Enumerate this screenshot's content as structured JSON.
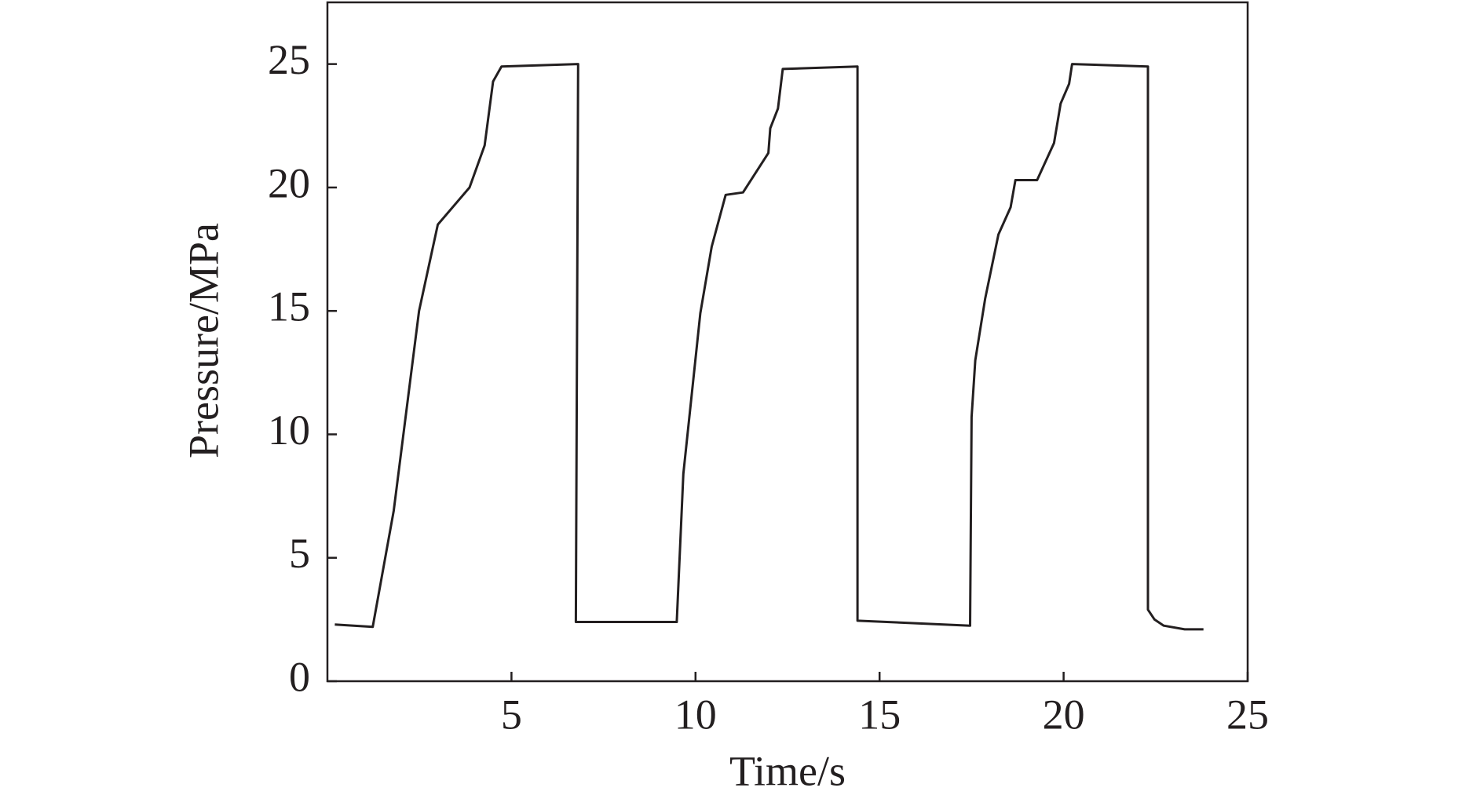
{
  "chart_data": {
    "type": "line",
    "x_label": "Time/s",
    "y_label": "Pressure/MPa",
    "x": [
      0.2,
      1.23,
      1.8,
      2.49,
      3.0,
      3.86,
      4.27,
      4.5,
      4.73,
      6.81,
      6.75,
      9.49,
      9.67,
      10.13,
      10.44,
      10.82,
      11.29,
      11.98,
      12.03,
      12.24,
      12.37,
      14.4,
      14.4,
      17.46,
      17.5,
      17.6,
      17.87,
      18.23,
      18.56,
      18.69,
      19.28,
      19.74,
      19.92,
      20.15,
      20.23,
      22.29,
      22.29,
      22.47,
      22.72,
      23.29,
      23.8
    ],
    "values": [
      2.3,
      2.2,
      6.9,
      15.0,
      18.5,
      20.0,
      21.7,
      24.3,
      24.9,
      25.0,
      2.4,
      2.4,
      8.4,
      14.9,
      17.6,
      19.7,
      19.8,
      21.4,
      22.4,
      23.2,
      24.8,
      24.9,
      2.45,
      2.25,
      10.7,
      13.0,
      15.5,
      18.1,
      19.2,
      20.3,
      20.3,
      21.8,
      23.4,
      24.2,
      25.0,
      24.9,
      2.9,
      2.5,
      2.25,
      2.1,
      2.1
    ],
    "color": "#231f20",
    "xlim": [
      0,
      25
    ],
    "ylim": [
      0,
      27.5
    ],
    "xticks": [
      5,
      10,
      15,
      20,
      25
    ],
    "yticks": [
      0,
      5,
      10,
      15,
      20,
      25
    ],
    "grid": false
  }
}
